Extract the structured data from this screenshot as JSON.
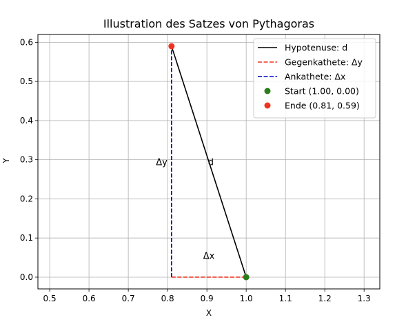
{
  "chart_data": {
    "type": "line",
    "title": "Illustration des Satzes von Pythagoras",
    "xlabel": "X",
    "ylabel": "Y",
    "xlim": [
      0.47,
      1.34
    ],
    "ylim": [
      -0.03,
      0.62
    ],
    "xticks": [
      0.5,
      0.6,
      0.7,
      0.8,
      0.9,
      1.0,
      1.1,
      1.2,
      1.3
    ],
    "xtick_labels": [
      "0.5",
      "0.6",
      "0.7",
      "0.8",
      "0.9",
      "1.0",
      "1.1",
      "1.2",
      "1.3"
    ],
    "yticks": [
      0.0,
      0.1,
      0.2,
      0.3,
      0.4,
      0.5,
      0.6
    ],
    "ytick_labels": [
      "0.0",
      "0.1",
      "0.2",
      "0.3",
      "0.4",
      "0.5",
      "0.6"
    ],
    "grid": true,
    "legend_position": "top-right",
    "series": [
      {
        "name": "Hypotenuse: d",
        "style": "solid",
        "color": "#000000",
        "x": [
          1.0,
          0.81
        ],
        "y": [
          0.0,
          0.59
        ]
      },
      {
        "name": "Gegenkathete: Δy",
        "style": "dashed",
        "color": "#ee3322",
        "x": [
          0.81,
          1.0
        ],
        "y": [
          0.0,
          0.0
        ]
      },
      {
        "name": "Ankathete: Δx",
        "style": "dashed",
        "color": "#0000cc",
        "x": [
          0.81,
          0.81
        ],
        "y": [
          0.0,
          0.59
        ]
      }
    ],
    "points": [
      {
        "name": "Start (1.00, 0.00)",
        "x": 1.0,
        "y": 0.0,
        "color": "#2a7d1a"
      },
      {
        "name": "Ende (0.81, 0.59)",
        "x": 0.81,
        "y": 0.59,
        "color": "#ee3322"
      }
    ],
    "annotations": [
      {
        "text": "Δy",
        "x": 0.785,
        "y": 0.295
      },
      {
        "text": "d",
        "x": 0.91,
        "y": 0.295
      },
      {
        "text": "Δx",
        "x": 0.905,
        "y": 0.055
      }
    ]
  }
}
